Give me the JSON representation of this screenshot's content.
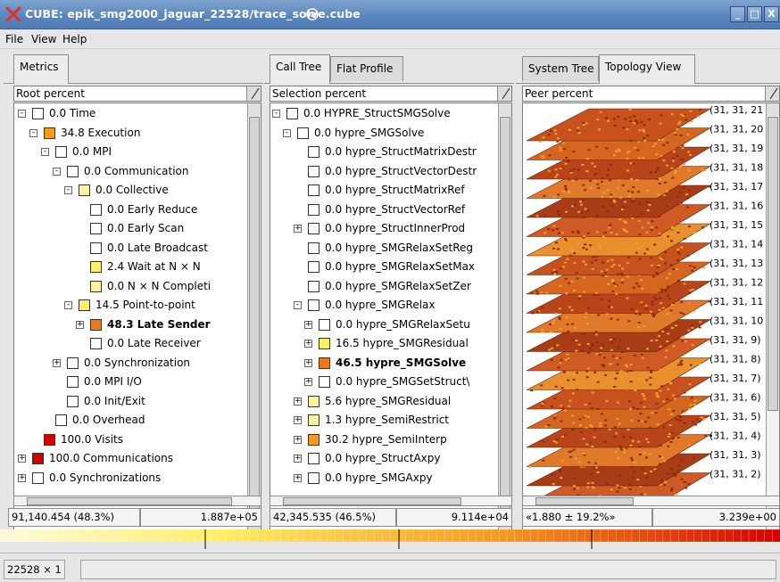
{
  "window": {
    "title": "CUBE: epik_smg2000_jaguar_22528/trace_solve.cube",
    "buttons": [
      "_",
      "□",
      "X"
    ]
  },
  "menu": {
    "file": "File",
    "view": "View",
    "help": "Help"
  },
  "colors": {
    "white": "#ffffff",
    "yellow": "#ffee66",
    "lightyellow": "#fff2a0",
    "orange": "#f59a20",
    "darkorange": "#ea7a18",
    "red": "#d40000"
  },
  "metrics": {
    "tab": "Metrics",
    "selector": "Root percent",
    "rows": [
      {
        "label": "0.0 Time",
        "bold": false,
        "color": "white",
        "toggle": "-",
        "depth": 0
      },
      {
        "label": "34.8 Execution",
        "bold": false,
        "color": "orange",
        "toggle": "-",
        "depth": 1
      },
      {
        "label": "0.0 MPI",
        "bold": false,
        "color": "white",
        "toggle": "-",
        "depth": 2
      },
      {
        "label": "0.0 Communication",
        "bold": false,
        "color": "white",
        "toggle": "-",
        "depth": 3
      },
      {
        "label": "0.0 Collective",
        "bold": false,
        "color": "lightyellow",
        "toggle": "-",
        "depth": 4
      },
      {
        "label": "0.0 Early Reduce",
        "bold": false,
        "color": "white",
        "toggle": "",
        "depth": 5
      },
      {
        "label": "0.0 Early Scan",
        "bold": false,
        "color": "white",
        "toggle": "",
        "depth": 5
      },
      {
        "label": "0.0 Late Broadcast",
        "bold": false,
        "color": "white",
        "toggle": "",
        "depth": 5
      },
      {
        "label": "2.4 Wait at N × N",
        "bold": false,
        "color": "yellow",
        "toggle": "",
        "depth": 5
      },
      {
        "label": "0.0 N × N Completi​",
        "bold": false,
        "color": "lightyellow",
        "toggle": "",
        "depth": 5
      },
      {
        "label": "14.5 Point-to-point",
        "bold": false,
        "color": "yellow",
        "toggle": "-",
        "depth": 4
      },
      {
        "label": "48.3 Late Sender",
        "bold": true,
        "color": "darkorange",
        "toggle": "+",
        "depth": 5
      },
      {
        "label": "0.0 Late Receiver",
        "bold": false,
        "color": "white",
        "toggle": "",
        "depth": 5
      },
      {
        "label": "0.0 Synchronization",
        "bold": false,
        "color": "white",
        "toggle": "+",
        "depth": 3
      },
      {
        "label": "0.0 MPI I/O",
        "bold": false,
        "color": "white",
        "toggle": "",
        "depth": 3
      },
      {
        "label": "0.0 Init/Exit",
        "bold": false,
        "color": "white",
        "toggle": "",
        "depth": 3
      },
      {
        "label": "0.0 Overhead",
        "bold": false,
        "color": "white",
        "toggle": "",
        "depth": 2
      },
      {
        "label": "100.0 Visits",
        "bold": false,
        "color": "red",
        "toggle": "",
        "depth": 1
      },
      {
        "label": "100.0 Communications",
        "bold": false,
        "color": "red",
        "toggle": "+",
        "depth": 0
      },
      {
        "label": "0.0 Synchronizations",
        "bold": false,
        "color": "white",
        "toggle": "+",
        "depth": 0
      }
    ],
    "status_left": "91,140.454 (48.3%)",
    "status_right": "1.887e+05"
  },
  "calltree": {
    "tabs": [
      "Call Tree",
      "Flat Profile"
    ],
    "selector": "Selection percent",
    "rows": [
      {
        "label": "0.0 HYPRE_StructSMGSolve",
        "bold": false,
        "color": "white",
        "toggle": "-",
        "depth": 0
      },
      {
        "label": "0.0 hypre_SMGSolve",
        "bold": false,
        "color": "white",
        "toggle": "-",
        "depth": 1
      },
      {
        "label": "0.0 hypre_StructMatrixDestr",
        "bold": false,
        "color": "white",
        "toggle": "",
        "depth": 2
      },
      {
        "label": "0.0 hypre_StructVectorDestr",
        "bold": false,
        "color": "white",
        "toggle": "",
        "depth": 2
      },
      {
        "label": "0.0 hypre_StructMatrixRef",
        "bold": false,
        "color": "white",
        "toggle": "",
        "depth": 2
      },
      {
        "label": "0.0 hypre_StructVectorRef",
        "bold": false,
        "color": "white",
        "toggle": "",
        "depth": 2
      },
      {
        "label": "0.0 hypre_StructInnerProd",
        "bold": false,
        "color": "white",
        "toggle": "+",
        "depth": 2
      },
      {
        "label": "0.0 hypre_SMGRelaxSetReg",
        "bold": false,
        "color": "white",
        "toggle": "",
        "depth": 2
      },
      {
        "label": "0.0 hypre_SMGRelaxSetMax",
        "bold": false,
        "color": "white",
        "toggle": "",
        "depth": 2
      },
      {
        "label": "0.0 hypre_SMGRelaxSetZer",
        "bold": false,
        "color": "white",
        "toggle": "",
        "depth": 2
      },
      {
        "label": "0.0 hypre_SMGRelax",
        "bold": false,
        "color": "white",
        "toggle": "-",
        "depth": 2
      },
      {
        "label": "0.0 hypre_SMGRelaxSetu",
        "bold": false,
        "color": "white",
        "toggle": "+",
        "depth": 3
      },
      {
        "label": "16.5 hypre_SMGResidual",
        "bold": false,
        "color": "yellow",
        "toggle": "+",
        "depth": 3
      },
      {
        "label": "46.5 hypre_SMGSolve",
        "bold": true,
        "color": "darkorange",
        "toggle": "+",
        "depth": 3
      },
      {
        "label": "0.0 hypre_SMGSetStruct\\",
        "bold": false,
        "color": "white",
        "toggle": "+",
        "depth": 3
      },
      {
        "label": "5.6 hypre_SMGResidual",
        "bold": false,
        "color": "lightyellow",
        "toggle": "+",
        "depth": 2
      },
      {
        "label": "1.3 hypre_SemiRestrict",
        "bold": false,
        "color": "lightyellow",
        "toggle": "+",
        "depth": 2
      },
      {
        "label": "30.2 hypre_SemiInterp",
        "bold": false,
        "color": "orange",
        "toggle": "+",
        "depth": 2
      },
      {
        "label": "0.0 hypre_StructAxpy",
        "bold": false,
        "color": "white",
        "toggle": "+",
        "depth": 2
      },
      {
        "label": "0.0 hypre_SMGAxpy",
        "bold": false,
        "color": "white",
        "toggle": "+",
        "depth": 2
      }
    ],
    "status_left": "42,345.535 (46.5%)",
    "status_right": "9.114e+04"
  },
  "system": {
    "tabs": [
      "System Tree",
      "Topology View"
    ],
    "selector": "Peer percent",
    "plane_labels": [
      "(31, 31, 21",
      "(31, 31, 20",
      "(31, 31, 19",
      "(31, 31, 18",
      "(31, 31, 17",
      "(31, 31, 16",
      "(31, 31, 15",
      "(31, 31, 14",
      "(31, 31, 13",
      "(31, 31, 12",
      "(31, 31, 11",
      "(31, 31, 10",
      "(31, 31, 9)",
      "(31, 31, 8)",
      "(31, 31, 7)",
      "(31, 31, 6)",
      "(31, 31, 5)",
      "(31, 31, 4)",
      "(31, 31, 3)",
      "(31, 31, 2)"
    ],
    "status_left": "«1.880 ± 19.2%»",
    "status_right": "3.239e+00"
  },
  "statusbar": {
    "dims": "22528 × 1"
  }
}
